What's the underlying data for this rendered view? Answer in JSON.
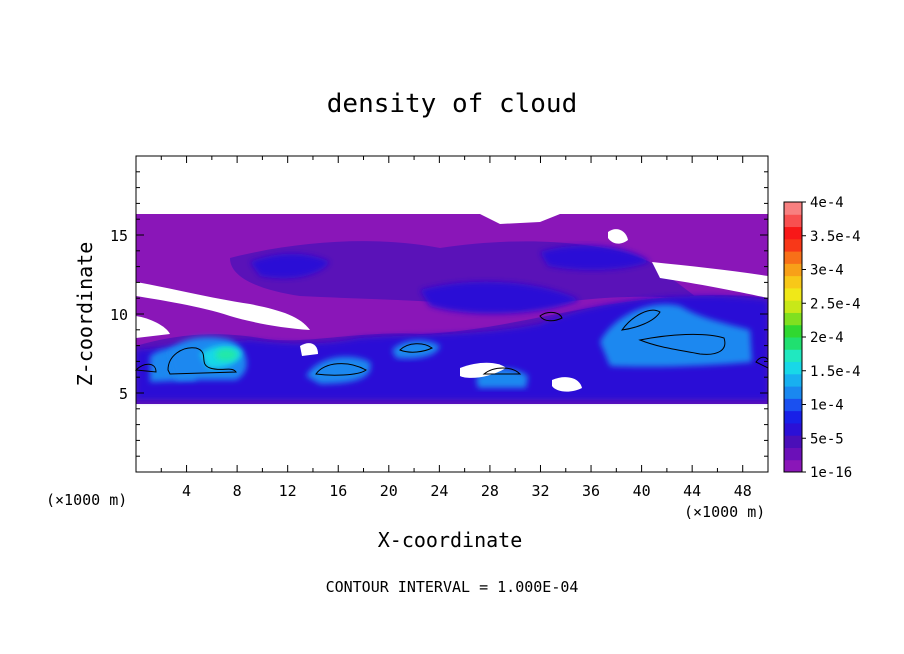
{
  "chart_data": {
    "type": "heatmap",
    "title": "density of cloud",
    "xlabel": "X-coordinate",
    "ylabel": "Z-coordinate",
    "x_unit": "(×1000 m)",
    "xlim": [
      0,
      50
    ],
    "ylim": [
      0,
      20
    ],
    "x_ticks": [
      "4",
      "8",
      "12",
      "16",
      "20",
      "24",
      "28",
      "32",
      "36",
      "40",
      "44",
      "48"
    ],
    "y_ticks": [
      "5",
      "10",
      "15"
    ],
    "footer": "CONTOUR INTERVAL = 1.000E-04",
    "colorbar": {
      "labels": [
        "1e-16",
        "5e-5",
        "1e-4",
        "1.5e-4",
        "2e-4",
        "2.5e-4",
        "3e-4",
        "3.5e-4",
        "4e-4"
      ],
      "colors": [
        "#8a16b8",
        "#6b10b8",
        "#4a0fb8",
        "#2b10d6",
        "#1820e8",
        "#1a50f0",
        "#1a88f0",
        "#18b0f0",
        "#18d8e8",
        "#20e8c0",
        "#20e070",
        "#30d830",
        "#80e020",
        "#c8e818",
        "#f0e818",
        "#f8c818",
        "#f8a018",
        "#f87018",
        "#f83818",
        "#f81818",
        "#f85050",
        "#f88080"
      ]
    },
    "cloud_layer_z_range": [
      4.5,
      16.2
    ],
    "maxima": [
      {
        "x": 7,
        "z": 7,
        "label": "1e-4 contour (peak ~1.5e-4)"
      },
      {
        "x": 16,
        "z": 6,
        "label": "1e-4 contour"
      },
      {
        "x": 22,
        "z": 7.8,
        "label": "1e-4 contour"
      },
      {
        "x": 29,
        "z": 6.2,
        "label": "1e-4 contour"
      },
      {
        "x": 34,
        "z": 9.8,
        "label": "1e-4 contour"
      },
      {
        "x": 39,
        "z": 9.6,
        "label": "1e-4 contour"
      },
      {
        "x": 43,
        "z": 8,
        "label": "1e-4 contour"
      }
    ]
  }
}
